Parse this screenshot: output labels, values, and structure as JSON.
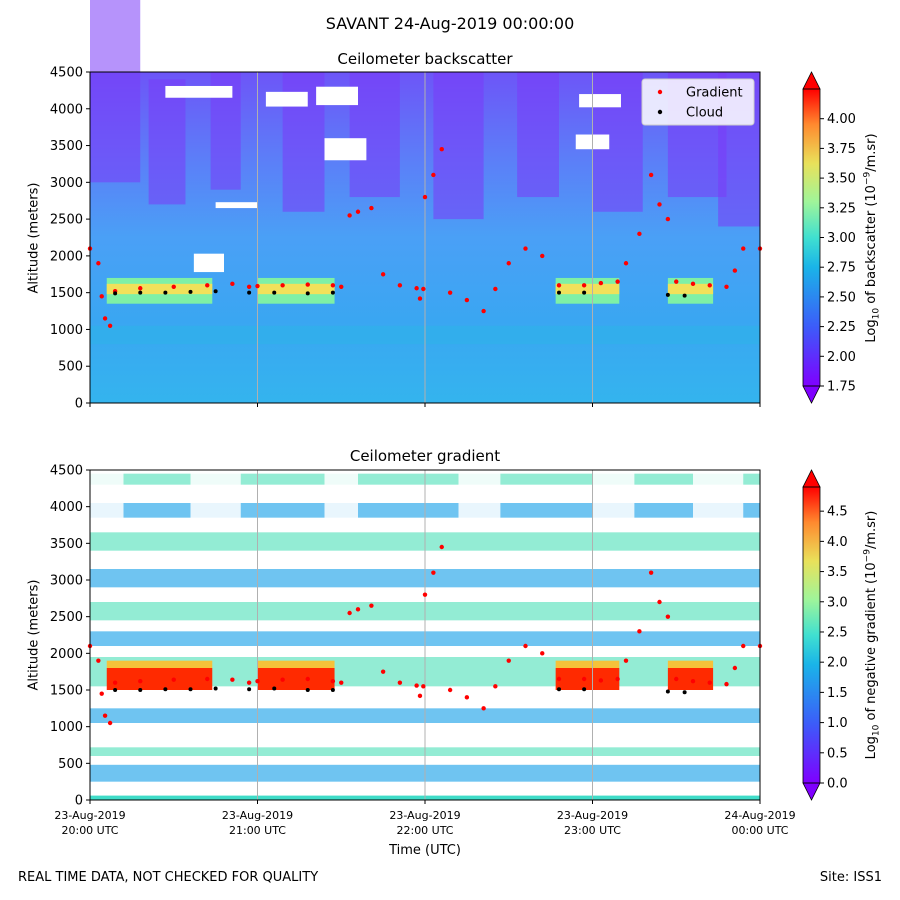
{
  "figure": {
    "suptitle": "SAVANT 24-Aug-2019 00:00:00",
    "footer_left": "REAL TIME DATA, NOT CHECKED FOR QUALITY",
    "footer_right": "Site: ISS1"
  },
  "chart_data": [
    {
      "type": "heatmap",
      "title": "Ceilometer backscatter",
      "xlabel": "",
      "ylabel": "Altitude (meters)",
      "ylim": [
        0,
        4500
      ],
      "y_ticks": [
        "0",
        "500",
        "1000",
        "1500",
        "2000",
        "2500",
        "3000",
        "3500",
        "4000",
        "4500"
      ],
      "x_tick_labels": [],
      "grid": "vertical lines at hourly ticks",
      "colorbar": {
        "label_parts": [
          "Log",
          "10",
          " of backscatter (10",
          "−9",
          "/m.sr)"
        ],
        "range": [
          1.75,
          4.25
        ],
        "ticks": [
          "1.75",
          "2.00",
          "2.25",
          "2.50",
          "2.75",
          "3.00",
          "3.25",
          "3.50",
          "3.75",
          "4.00"
        ],
        "colormap": "rainbow",
        "extend": "both"
      },
      "legend": {
        "position": "top-right",
        "entries": [
          {
            "label": "Gradient",
            "color": "#ff0000"
          },
          {
            "label": "Cloud",
            "color": "#000000"
          }
        ]
      },
      "series": [
        {
          "name": "Gradient",
          "color": "#ff0000",
          "points": [
            [
              20.0,
              2100
            ],
            [
              20.05,
              1900
            ],
            [
              20.07,
              1450
            ],
            [
              20.09,
              1150
            ],
            [
              20.12,
              1050
            ],
            [
              20.15,
              1520
            ],
            [
              20.3,
              1560
            ],
            [
              20.5,
              1580
            ],
            [
              20.7,
              1600
            ],
            [
              20.85,
              1620
            ],
            [
              20.95,
              1580
            ],
            [
              21.0,
              1590
            ],
            [
              21.15,
              1600
            ],
            [
              21.3,
              1610
            ],
            [
              21.45,
              1600
            ],
            [
              21.5,
              1580
            ],
            [
              21.55,
              2550
            ],
            [
              21.6,
              2600
            ],
            [
              21.68,
              2650
            ],
            [
              21.75,
              1750
            ],
            [
              21.85,
              1600
            ],
            [
              21.95,
              1560
            ],
            [
              21.97,
              1420
            ],
            [
              21.99,
              1550
            ],
            [
              22.0,
              2800
            ],
            [
              22.05,
              3100
            ],
            [
              22.1,
              3450
            ],
            [
              22.15,
              1500
            ],
            [
              22.25,
              1400
            ],
            [
              22.35,
              1250
            ],
            [
              22.42,
              1550
            ],
            [
              22.5,
              1900
            ],
            [
              22.6,
              2100
            ],
            [
              22.7,
              2000
            ],
            [
              22.8,
              1600
            ],
            [
              22.95,
              1600
            ],
            [
              23.05,
              1630
            ],
            [
              23.15,
              1650
            ],
            [
              23.2,
              1900
            ],
            [
              23.28,
              2300
            ],
            [
              23.35,
              3100
            ],
            [
              23.4,
              2700
            ],
            [
              23.45,
              2500
            ],
            [
              23.5,
              1650
            ],
            [
              23.6,
              1620
            ],
            [
              23.7,
              1600
            ],
            [
              23.8,
              1580
            ],
            [
              23.85,
              1800
            ],
            [
              23.9,
              2100
            ],
            [
              24.0,
              2100
            ]
          ]
        },
        {
          "name": "Cloud",
          "color": "#000000",
          "points": [
            [
              20.15,
              1490
            ],
            [
              20.3,
              1500
            ],
            [
              20.45,
              1500
            ],
            [
              20.6,
              1510
            ],
            [
              20.75,
              1520
            ],
            [
              20.95,
              1500
            ],
            [
              21.1,
              1500
            ],
            [
              21.3,
              1490
            ],
            [
              21.45,
              1500
            ],
            [
              22.8,
              1500
            ],
            [
              22.95,
              1500
            ],
            [
              23.45,
              1470
            ],
            [
              23.55,
              1460
            ]
          ]
        }
      ]
    },
    {
      "type": "heatmap",
      "title": "Ceilometer gradient",
      "xlabel": "Time (UTC)",
      "ylabel": "Altitude (meters)",
      "ylim": [
        0,
        4500
      ],
      "y_ticks": [
        "0",
        "500",
        "1000",
        "1500",
        "2000",
        "2500",
        "3000",
        "3500",
        "4000",
        "4500"
      ],
      "x_tick_labels": [
        [
          "23-Aug-2019",
          "20:00 UTC"
        ],
        [
          "23-Aug-2019",
          "21:00 UTC"
        ],
        [
          "23-Aug-2019",
          "22:00 UTC"
        ],
        [
          "23-Aug-2019",
          "23:00 UTC"
        ],
        [
          "24-Aug-2019",
          "00:00 UTC"
        ]
      ],
      "grid": "vertical lines at hourly ticks",
      "colorbar": {
        "label_parts": [
          "Log",
          "10",
          " of negative gradient (10",
          "−9",
          "/m.sr)"
        ],
        "range": [
          0.0,
          4.9
        ],
        "ticks": [
          "0.0",
          "0.5",
          "1.0",
          "1.5",
          "2.0",
          "2.5",
          "3.0",
          "3.5",
          "4.0",
          "4.5"
        ],
        "colormap": "rainbow",
        "extend": "both"
      },
      "series": [
        {
          "name": "Gradient",
          "color": "#ff0000",
          "points": [
            [
              20.0,
              2100
            ],
            [
              20.05,
              1900
            ],
            [
              20.07,
              1450
            ],
            [
              20.09,
              1150
            ],
            [
              20.12,
              1050
            ],
            [
              20.15,
              1600
            ],
            [
              20.3,
              1620
            ],
            [
              20.5,
              1640
            ],
            [
              20.7,
              1650
            ],
            [
              20.85,
              1640
            ],
            [
              20.95,
              1600
            ],
            [
              21.0,
              1620
            ],
            [
              21.15,
              1640
            ],
            [
              21.3,
              1650
            ],
            [
              21.45,
              1620
            ],
            [
              21.5,
              1600
            ],
            [
              21.55,
              2550
            ],
            [
              21.6,
              2600
            ],
            [
              21.68,
              2650
            ],
            [
              21.75,
              1750
            ],
            [
              21.85,
              1600
            ],
            [
              21.95,
              1560
            ],
            [
              21.97,
              1420
            ],
            [
              21.99,
              1550
            ],
            [
              22.0,
              2800
            ],
            [
              22.05,
              3100
            ],
            [
              22.1,
              3450
            ],
            [
              22.15,
              1500
            ],
            [
              22.25,
              1400
            ],
            [
              22.35,
              1250
            ],
            [
              22.42,
              1550
            ],
            [
              22.5,
              1900
            ],
            [
              22.6,
              2100
            ],
            [
              22.7,
              2000
            ],
            [
              22.8,
              1650
            ],
            [
              22.95,
              1650
            ],
            [
              23.05,
              1630
            ],
            [
              23.15,
              1650
            ],
            [
              23.2,
              1900
            ],
            [
              23.28,
              2300
            ],
            [
              23.35,
              3100
            ],
            [
              23.4,
              2700
            ],
            [
              23.45,
              2500
            ],
            [
              23.5,
              1650
            ],
            [
              23.6,
              1620
            ],
            [
              23.7,
              1600
            ],
            [
              23.8,
              1580
            ],
            [
              23.85,
              1800
            ],
            [
              23.9,
              2100
            ],
            [
              24.0,
              2100
            ]
          ]
        },
        {
          "name": "Cloud",
          "color": "#000000",
          "points": [
            [
              20.15,
              1500
            ],
            [
              20.3,
              1500
            ],
            [
              20.45,
              1510
            ],
            [
              20.6,
              1510
            ],
            [
              20.75,
              1520
            ],
            [
              20.95,
              1510
            ],
            [
              21.1,
              1520
            ],
            [
              21.3,
              1500
            ],
            [
              21.45,
              1500
            ],
            [
              22.8,
              1510
            ],
            [
              22.95,
              1510
            ],
            [
              23.45,
              1480
            ],
            [
              23.55,
              1470
            ]
          ]
        }
      ]
    }
  ]
}
